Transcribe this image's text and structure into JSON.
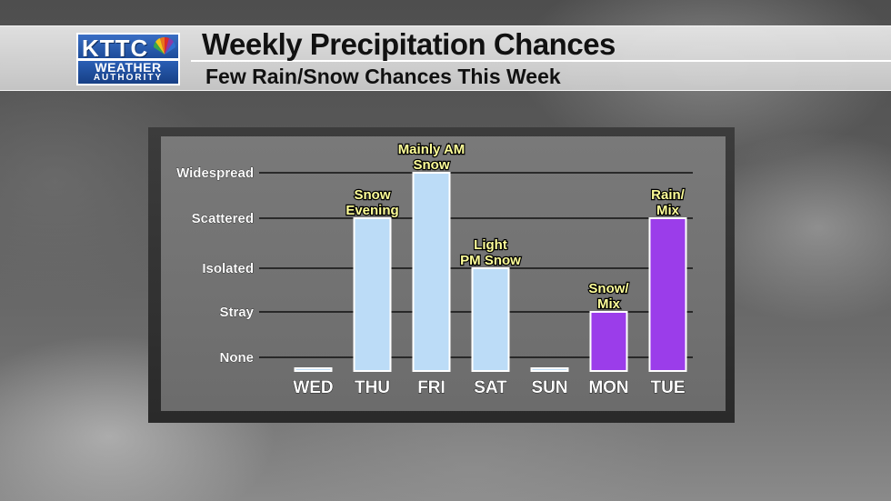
{
  "header": {
    "title": "Weekly Precipitation Chances",
    "subtitle": "Few Rain/Snow Chances This Week"
  },
  "logo": {
    "call_letters": "KTTC",
    "line1": "WEATHER",
    "line2": "AUTHORITY",
    "icon": "peacock-icon"
  },
  "colors": {
    "snow_bar": "#bcdcf7",
    "mix_bar": "#9b3dea",
    "annotation_text": "#ffff99",
    "axis_text": "#ffffff",
    "gridline": "#111111"
  },
  "chart_data": {
    "type": "bar",
    "title": "",
    "xlabel": "",
    "ylabel": "",
    "y_levels": [
      "None",
      "Stray",
      "Isolated",
      "Scattered",
      "Widespread"
    ],
    "ylim": [
      0,
      4
    ],
    "grid": true,
    "categories": [
      "WED",
      "THU",
      "FRI",
      "SAT",
      "SUN",
      "MON",
      "TUE"
    ],
    "values": [
      0,
      3,
      4,
      2,
      0,
      1,
      3
    ],
    "bar_types": [
      "snow",
      "snow",
      "snow",
      "snow",
      "snow",
      "mix",
      "mix"
    ],
    "annotations": [
      [],
      [
        "Snow",
        "Evening"
      ],
      [
        "Mainly AM",
        "Snow"
      ],
      [
        "Light",
        "PM Snow"
      ],
      [],
      [
        "Snow/",
        "Mix"
      ],
      [
        "Rain/",
        "Mix"
      ]
    ]
  }
}
